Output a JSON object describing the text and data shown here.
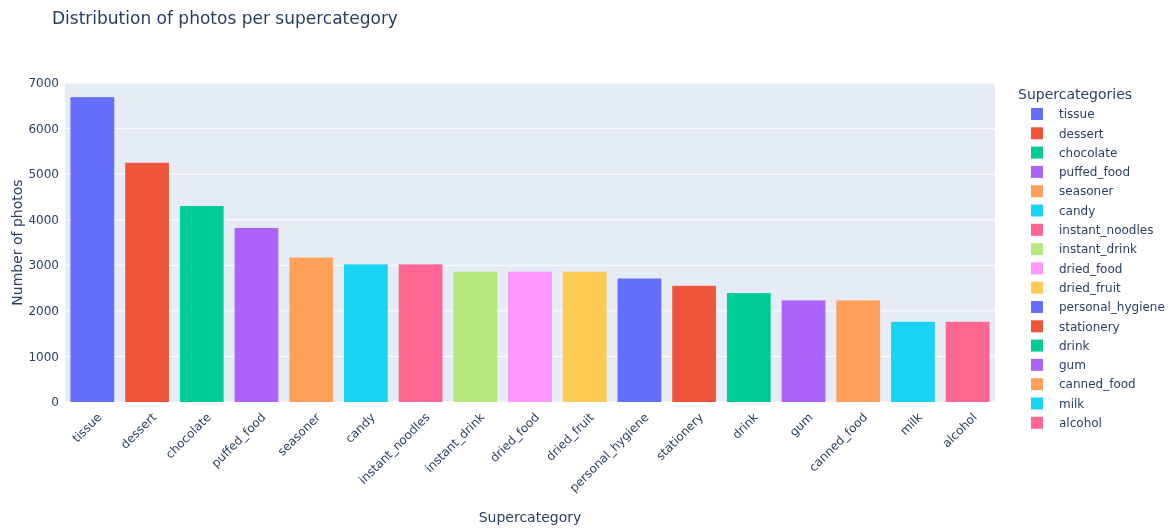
{
  "chart_data": {
    "type": "bar",
    "title": "Distribution of photos per supercategory",
    "xlabel": "Supercategory",
    "ylabel": "Number of photos",
    "legend_title": "Supercategories",
    "legend": "right",
    "grid": "y",
    "categories": [
      "tissue",
      "dessert",
      "chocolate",
      "puffed_food",
      "seasoner",
      "candy",
      "instant_noodles",
      "instant_drink",
      "dried_food",
      "dried_fruit",
      "personal_hygiene",
      "stationery",
      "drink",
      "gum",
      "canned_food",
      "milk",
      "alcohol"
    ],
    "ylim": [
      0,
      7000
    ],
    "yticks": [
      0,
      1000,
      2000,
      3000,
      4000,
      5000,
      6000,
      7000
    ],
    "series": [
      {
        "name": "tissue",
        "color": "#636efa",
        "values": [
          6690,
          null,
          null,
          null,
          null,
          null,
          null,
          null,
          null,
          null,
          null,
          null,
          null,
          null,
          null,
          null,
          null
        ]
      },
      {
        "name": "dessert",
        "color": "#ef553b",
        "values": [
          null,
          5250,
          null,
          null,
          null,
          null,
          null,
          null,
          null,
          null,
          null,
          null,
          null,
          null,
          null,
          null,
          null
        ]
      },
      {
        "name": "chocolate",
        "color": "#00cc96",
        "values": [
          null,
          null,
          4300,
          null,
          null,
          null,
          null,
          null,
          null,
          null,
          null,
          null,
          null,
          null,
          null,
          null,
          null
        ]
      },
      {
        "name": "puffed_food",
        "color": "#ab63fa",
        "values": [
          null,
          null,
          null,
          3820,
          null,
          null,
          null,
          null,
          null,
          null,
          null,
          null,
          null,
          null,
          null,
          null,
          null
        ]
      },
      {
        "name": "seasoner",
        "color": "#ffa15a",
        "values": [
          null,
          null,
          null,
          null,
          3170,
          null,
          null,
          null,
          null,
          null,
          null,
          null,
          null,
          null,
          null,
          null,
          null
        ]
      },
      {
        "name": "candy",
        "color": "#19d3f3",
        "values": [
          null,
          null,
          null,
          null,
          null,
          3020,
          null,
          null,
          null,
          null,
          null,
          null,
          null,
          null,
          null,
          null,
          null
        ]
      },
      {
        "name": "instant_noodles",
        "color": "#ff6692",
        "values": [
          null,
          null,
          null,
          null,
          null,
          null,
          3020,
          null,
          null,
          null,
          null,
          null,
          null,
          null,
          null,
          null,
          null
        ]
      },
      {
        "name": "instant_drink",
        "color": "#b6e880",
        "values": [
          null,
          null,
          null,
          null,
          null,
          null,
          null,
          2860,
          null,
          null,
          null,
          null,
          null,
          null,
          null,
          null,
          null
        ]
      },
      {
        "name": "dried_food",
        "color": "#ff97ff",
        "values": [
          null,
          null,
          null,
          null,
          null,
          null,
          null,
          null,
          2860,
          null,
          null,
          null,
          null,
          null,
          null,
          null,
          null
        ]
      },
      {
        "name": "dried_fruit",
        "color": "#fecb52",
        "values": [
          null,
          null,
          null,
          null,
          null,
          null,
          null,
          null,
          null,
          2860,
          null,
          null,
          null,
          null,
          null,
          null,
          null
        ]
      },
      {
        "name": "personal_hygiene",
        "color": "#636efa",
        "values": [
          null,
          null,
          null,
          null,
          null,
          null,
          null,
          null,
          null,
          null,
          2710,
          null,
          null,
          null,
          null,
          null,
          null
        ]
      },
      {
        "name": "stationery",
        "color": "#ef553b",
        "values": [
          null,
          null,
          null,
          null,
          null,
          null,
          null,
          null,
          null,
          null,
          null,
          2550,
          null,
          null,
          null,
          null,
          null
        ]
      },
      {
        "name": "drink",
        "color": "#00cc96",
        "values": [
          null,
          null,
          null,
          null,
          null,
          null,
          null,
          null,
          null,
          null,
          null,
          null,
          2390,
          null,
          null,
          null,
          null
        ]
      },
      {
        "name": "gum",
        "color": "#ab63fa",
        "values": [
          null,
          null,
          null,
          null,
          null,
          null,
          null,
          null,
          null,
          null,
          null,
          null,
          null,
          2230,
          null,
          null,
          null
        ]
      },
      {
        "name": "canned_food",
        "color": "#ffa15a",
        "values": [
          null,
          null,
          null,
          null,
          null,
          null,
          null,
          null,
          null,
          null,
          null,
          null,
          null,
          null,
          2230,
          null,
          null
        ]
      },
      {
        "name": "milk",
        "color": "#19d3f3",
        "values": [
          null,
          null,
          null,
          null,
          null,
          null,
          null,
          null,
          null,
          null,
          null,
          null,
          null,
          null,
          null,
          1760,
          null
        ]
      },
      {
        "name": "alcohol",
        "color": "#ff6692",
        "values": [
          null,
          null,
          null,
          null,
          null,
          null,
          null,
          null,
          null,
          null,
          null,
          null,
          null,
          null,
          null,
          null,
          1760
        ]
      }
    ]
  }
}
